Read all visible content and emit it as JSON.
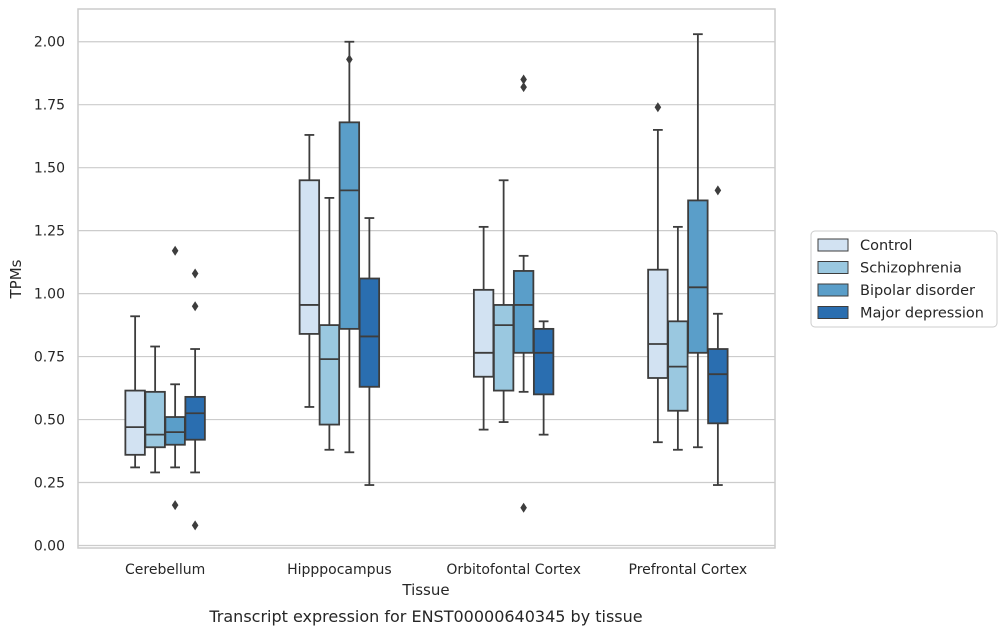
{
  "chart_data": {
    "type": "box",
    "caption": "Transcript expression for ENST00000640345 by tissue",
    "xlabel": "Tissue",
    "ylabel": "TPMs",
    "ylim": [
      -0.01,
      2.13
    ],
    "yticks": [
      0.0,
      0.25,
      0.5,
      0.75,
      1.0,
      1.25,
      1.5,
      1.75,
      2.0
    ],
    "ytick_labels": [
      "0.00",
      "0.25",
      "0.50",
      "0.75",
      "1.00",
      "1.25",
      "1.50",
      "1.75",
      "2.00"
    ],
    "categories": [
      "Cerebellum",
      "Hipppocampus",
      "Orbitofontal Cortex",
      "Prefrontal Cortex"
    ],
    "grid": true,
    "legend_position": "right",
    "series": [
      {
        "name": "Control",
        "color": "#d2e2f2",
        "boxes": [
          {
            "whislo": 0.31,
            "q1": 0.36,
            "med": 0.47,
            "q3": 0.615,
            "whishi": 0.91,
            "fliers": []
          },
          {
            "whislo": 0.55,
            "q1": 0.84,
            "med": 0.955,
            "q3": 1.45,
            "whishi": 1.63,
            "fliers": []
          },
          {
            "whislo": 0.46,
            "q1": 0.67,
            "med": 0.765,
            "q3": 1.015,
            "whishi": 1.265,
            "fliers": []
          },
          {
            "whislo": 0.41,
            "q1": 0.665,
            "med": 0.8,
            "q3": 1.095,
            "whishi": 1.65,
            "fliers": [
              1.74
            ]
          }
        ]
      },
      {
        "name": "Schizophrenia",
        "color": "#9ac8e0",
        "boxes": [
          {
            "whislo": 0.29,
            "q1": 0.39,
            "med": 0.44,
            "q3": 0.61,
            "whishi": 0.79,
            "fliers": []
          },
          {
            "whislo": 0.38,
            "q1": 0.48,
            "med": 0.74,
            "q3": 0.875,
            "whishi": 1.38,
            "fliers": []
          },
          {
            "whislo": 0.49,
            "q1": 0.615,
            "med": 0.875,
            "q3": 0.955,
            "whishi": 1.45,
            "fliers": []
          },
          {
            "whislo": 0.38,
            "q1": 0.535,
            "med": 0.71,
            "q3": 0.89,
            "whishi": 1.265,
            "fliers": []
          }
        ]
      },
      {
        "name": "Bipolar disorder",
        "color": "#5a9ec9",
        "boxes": [
          {
            "whislo": 0.31,
            "q1": 0.4,
            "med": 0.45,
            "q3": 0.51,
            "whishi": 0.64,
            "fliers": [
              1.17,
              0.16
            ]
          },
          {
            "whislo": 0.37,
            "q1": 0.86,
            "med": 1.41,
            "q3": 1.68,
            "whishi": 2.0,
            "fliers": [
              1.93
            ]
          },
          {
            "whislo": 0.61,
            "q1": 0.765,
            "med": 0.955,
            "q3": 1.09,
            "whishi": 1.15,
            "fliers": [
              1.82,
              1.85,
              0.15
            ]
          },
          {
            "whislo": 0.39,
            "q1": 0.765,
            "med": 1.025,
            "q3": 1.37,
            "whishi": 2.03,
            "fliers": []
          }
        ]
      },
      {
        "name": "Major depression",
        "color": "#2a6eb0",
        "boxes": [
          {
            "whislo": 0.29,
            "q1": 0.42,
            "med": 0.525,
            "q3": 0.59,
            "whishi": 0.78,
            "fliers": [
              1.08,
              0.95,
              0.08
            ]
          },
          {
            "whislo": 0.24,
            "q1": 0.63,
            "med": 0.83,
            "q3": 1.06,
            "whishi": 1.3,
            "fliers": []
          },
          {
            "whislo": 0.44,
            "q1": 0.6,
            "med": 0.765,
            "q3": 0.86,
            "whishi": 0.89,
            "fliers": []
          },
          {
            "whislo": 0.24,
            "q1": 0.485,
            "med": 0.68,
            "q3": 0.78,
            "whishi": 0.92,
            "fliers": [
              1.41
            ]
          }
        ]
      }
    ]
  }
}
